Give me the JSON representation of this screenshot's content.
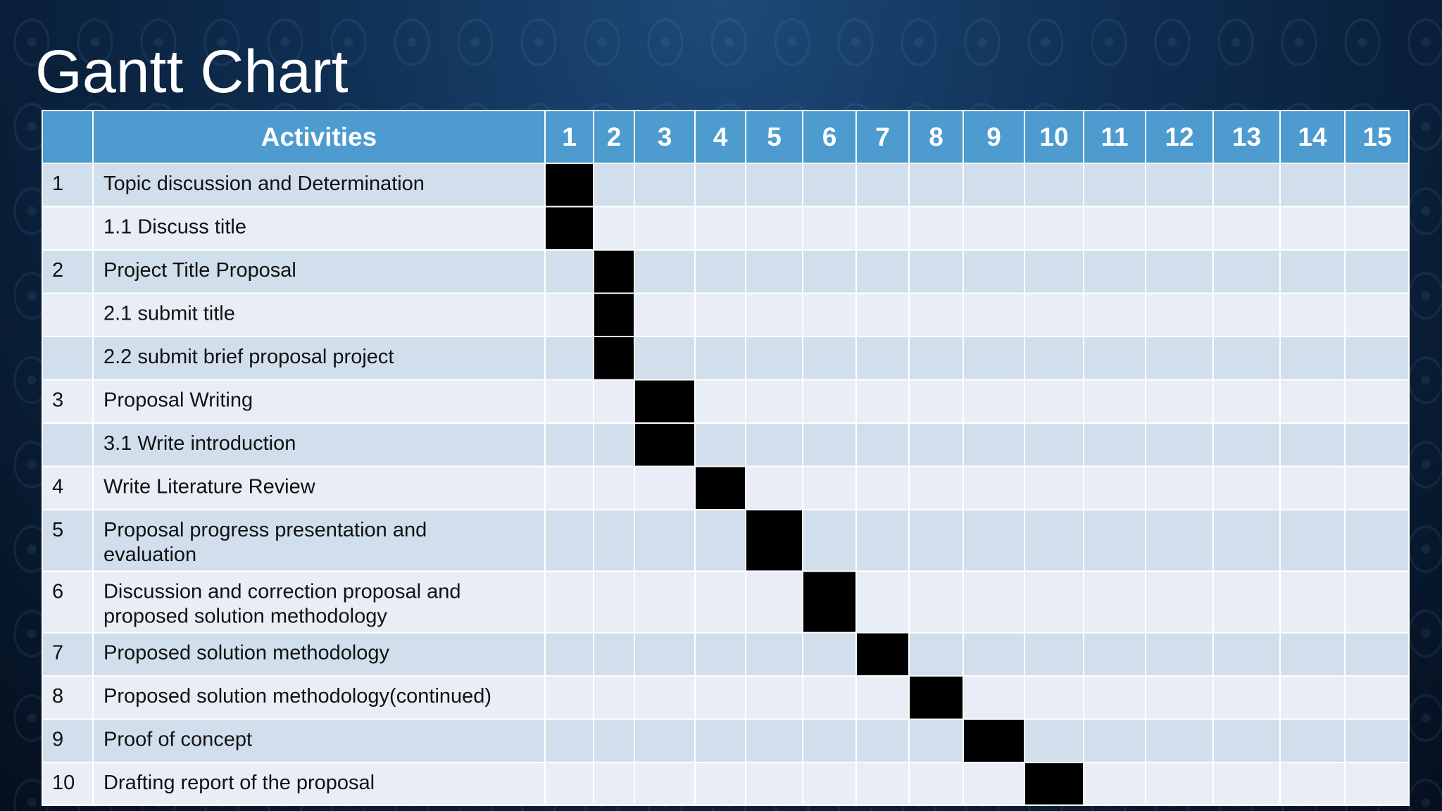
{
  "slide": {
    "title": "Gantt Chart"
  },
  "chart_data": {
    "type": "table",
    "header": {
      "activities_label": "Activities",
      "periods": [
        "1",
        "2",
        "3",
        "4",
        "5",
        "6",
        "7",
        "8",
        "9",
        "10",
        "11",
        "12",
        "13",
        "14",
        "15"
      ]
    },
    "rows": [
      {
        "num": "1",
        "lines": [
          "Topic discussion and Determination"
        ],
        "active": [
          1
        ]
      },
      {
        "num": "",
        "lines": [
          "1.1 Discuss title"
        ],
        "active": [
          1
        ]
      },
      {
        "num": "2",
        "lines": [
          "Project Title Proposal"
        ],
        "active": [
          2
        ]
      },
      {
        "num": "",
        "lines": [
          "2.1 submit title"
        ],
        "active": [
          2
        ]
      },
      {
        "num": "",
        "lines": [
          "2.2 submit brief proposal project"
        ],
        "active": [
          2
        ]
      },
      {
        "num": "3",
        "lines": [
          "Proposal Writing"
        ],
        "active": [
          3
        ]
      },
      {
        "num": "",
        "lines": [
          "3.1 Write introduction"
        ],
        "active": [
          3
        ]
      },
      {
        "num": "4",
        "lines": [
          "Write Literature Review"
        ],
        "active": [
          4
        ]
      },
      {
        "num": "5",
        "lines": [
          "Proposal progress presentation and",
          "evaluation"
        ],
        "active": [
          5
        ]
      },
      {
        "num": "6",
        "lines": [
          "Discussion and correction proposal and",
          "proposed solution methodology"
        ],
        "active": [
          6
        ]
      },
      {
        "num": "7",
        "lines": [
          "Proposed solution methodology"
        ],
        "active": [
          7
        ]
      },
      {
        "num": "8",
        "lines": [
          "Proposed solution methodology(continued)"
        ],
        "active": [
          8
        ]
      },
      {
        "num": "9",
        "lines": [
          "Proof of concept"
        ],
        "active": [
          9
        ]
      },
      {
        "num": "10",
        "lines": [
          "Drafting report of the proposal"
        ],
        "active": [
          10
        ]
      }
    ],
    "colors": {
      "header": "#4e9bcf",
      "row_band": "#d1dfec",
      "row_plain": "#e9eef6",
      "active": "#000000",
      "text": "#111111",
      "header_text": "#ffffff",
      "grid": "#ffffff"
    }
  }
}
